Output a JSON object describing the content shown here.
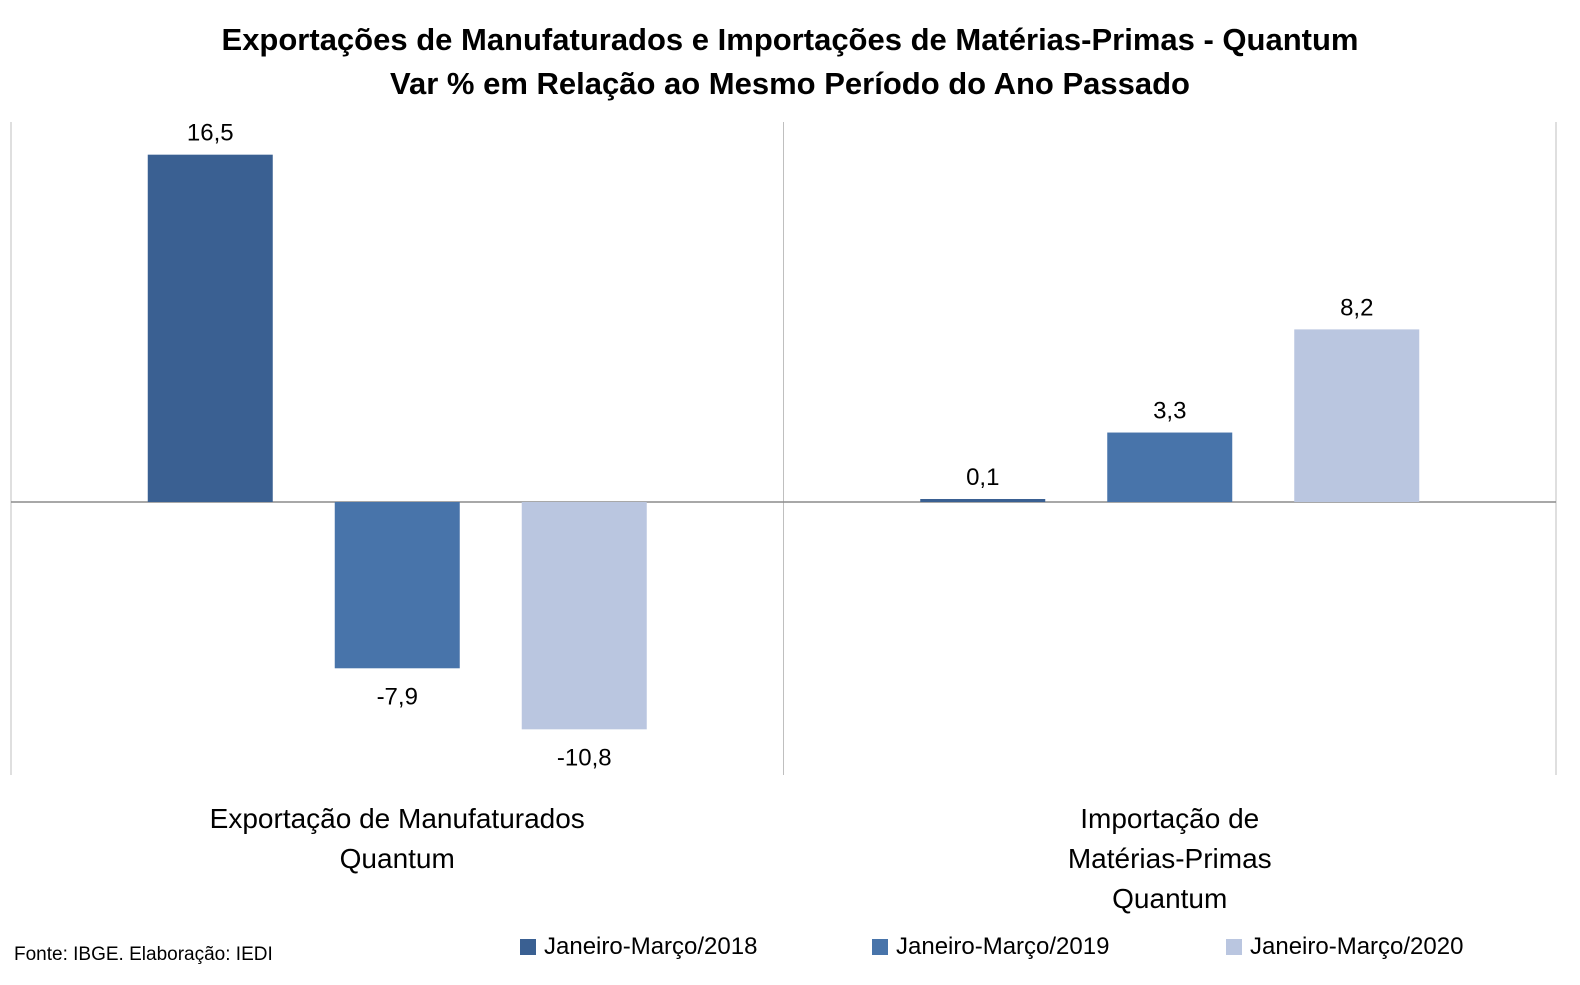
{
  "chart_data": {
    "type": "bar",
    "title": "Exportações de Manufaturados e Importações de Matérias-Primas - Quantum",
    "subtitle": "Var % em Relação ao Mesmo Período do Ano Passado",
    "categories": [
      [
        "Exportação de Manufaturados",
        "Quantum"
      ],
      [
        "Importação de",
        "Matérias-Primas",
        "Quantum"
      ]
    ],
    "series": [
      {
        "name": "Janeiro-Março/2018",
        "values": [
          16.5,
          0.1
        ],
        "labels": [
          "16,5",
          "0,1"
        ],
        "color": "#3a6092"
      },
      {
        "name": "Janeiro-Março/2019",
        "values": [
          -7.9,
          3.3
        ],
        "labels": [
          "-7,9",
          "3,3"
        ],
        "color": "#4874aa"
      },
      {
        "name": "Janeiro-Março/2020",
        "values": [
          -10.8,
          8.2
        ],
        "labels": [
          "-10,8",
          "8,2"
        ],
        "color": "#bac6e0"
      }
    ],
    "ylim": [
      -13,
      18.5
    ],
    "legend_position": "bottom",
    "grid": false
  },
  "source": "Fonte: IBGE. Elaboração: IEDI"
}
